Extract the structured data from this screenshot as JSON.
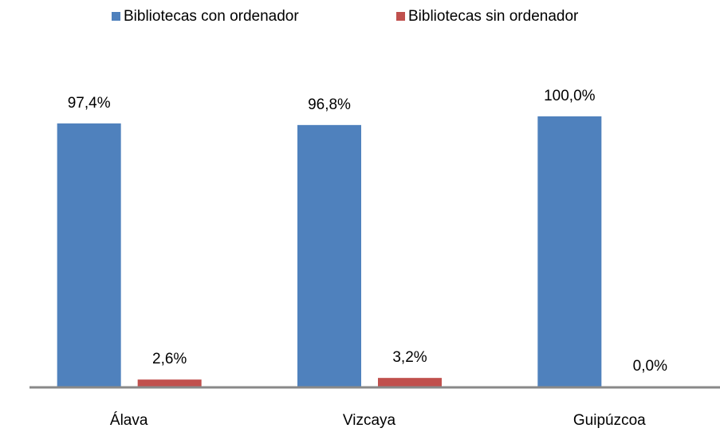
{
  "chart_data": {
    "type": "bar",
    "categories": [
      "Álava",
      "Vizcaya",
      "Guipúzcoa"
    ],
    "series": [
      {
        "name": "Bibliotecas con ordenador",
        "color": "#4f81bd",
        "values": [
          97.4,
          96.8,
          100.0
        ],
        "value_labels": [
          "97,4%",
          "96,8%",
          "100,0%"
        ]
      },
      {
        "name": "Bibliotecas sin ordenador",
        "color": "#c0504d",
        "values": [
          2.6,
          3.2,
          0.0
        ],
        "value_labels": [
          "2,6%",
          "3,2%",
          "0,0%"
        ]
      }
    ],
    "legend": "top"
  }
}
